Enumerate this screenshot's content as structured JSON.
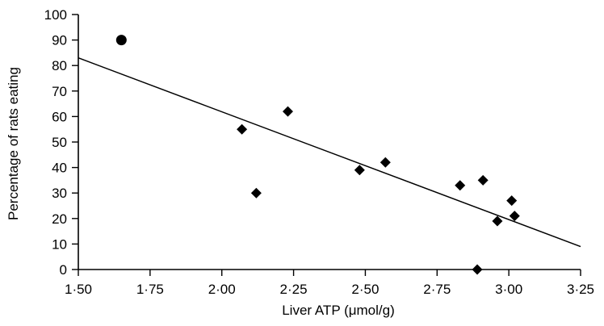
{
  "chart_data": {
    "type": "scatter",
    "xlabel": "Liver ATP (μmol/g)",
    "ylabel": "Percentage of rats eating",
    "xlim": [
      1.5,
      3.25
    ],
    "ylim": [
      0,
      100
    ],
    "x_ticks": [
      "1·50",
      "1·75",
      "2·00",
      "2·25",
      "2·50",
      "2·75",
      "3·00",
      "3·25"
    ],
    "y_ticks": [
      "0",
      "10",
      "20",
      "30",
      "40",
      "50",
      "60",
      "70",
      "80",
      "90",
      "100"
    ],
    "grid": false,
    "points": [
      {
        "x": 1.65,
        "y": 90,
        "marker": "circle"
      },
      {
        "x": 2.07,
        "y": 55,
        "marker": "diamond"
      },
      {
        "x": 2.12,
        "y": 30,
        "marker": "diamond"
      },
      {
        "x": 2.23,
        "y": 62,
        "marker": "diamond"
      },
      {
        "x": 2.48,
        "y": 39,
        "marker": "diamond"
      },
      {
        "x": 2.57,
        "y": 42,
        "marker": "diamond"
      },
      {
        "x": 2.83,
        "y": 33,
        "marker": "diamond"
      },
      {
        "x": 2.89,
        "y": 0,
        "marker": "diamond"
      },
      {
        "x": 2.91,
        "y": 35,
        "marker": "diamond"
      },
      {
        "x": 2.96,
        "y": 19,
        "marker": "diamond"
      },
      {
        "x": 3.01,
        "y": 27,
        "marker": "diamond"
      },
      {
        "x": 3.02,
        "y": 21,
        "marker": "diamond"
      }
    ],
    "trendline": {
      "x": [
        1.5,
        3.25
      ],
      "y": [
        83,
        9
      ]
    },
    "colors": {
      "marker": "#000000",
      "line": "#000000",
      "axis": "#000000"
    }
  }
}
